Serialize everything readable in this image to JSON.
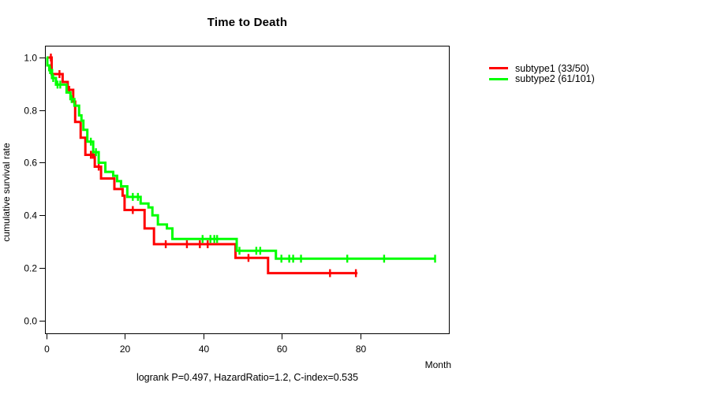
{
  "title": "Time to Death",
  "axes": {
    "x_label": "Month",
    "y_label": "cumulative survival rate",
    "x_ticks": [
      0,
      20,
      40,
      60,
      80
    ],
    "y_ticks": [
      "0.0",
      "0.2",
      "0.4",
      "0.6",
      "0.8",
      "1.0"
    ]
  },
  "annotation": "logrank P=0.497, HazardRatio=1.2, C-index=0.535",
  "legend": [
    {
      "label": "subtype1 (33/50)",
      "color": "#ff0000"
    },
    {
      "label": "subtype2 (61/101)",
      "color": "#00ff00"
    }
  ],
  "chart_data": {
    "type": "line",
    "subtype": "kaplan-meier-step-curves",
    "title": "Time to Death",
    "xlabel": "Month",
    "ylabel": "cumulative survival rate",
    "xlim": [
      0,
      102.6
    ],
    "ylim": [
      0.0,
      1.0
    ],
    "grid": false,
    "legend_position": "right-outside",
    "stats": {
      "logrank_p": 0.497,
      "hazard_ratio": 1.2,
      "c_index": 0.535
    },
    "series": [
      {
        "id": "subtype1",
        "name": "subtype1 (33/50)",
        "color": "#ff0000",
        "n": 50,
        "events": 33,
        "end": 79.3,
        "steps": [
          [
            0,
            1.0
          ],
          [
            1.3,
            0.937
          ],
          [
            4.1,
            0.907
          ],
          [
            5.4,
            0.877
          ],
          [
            6.8,
            0.832
          ],
          [
            7.3,
            0.755
          ],
          [
            8.7,
            0.695
          ],
          [
            9.9,
            0.63
          ],
          [
            12.3,
            0.585
          ],
          [
            13.9,
            0.54
          ],
          [
            17.3,
            0.5
          ],
          [
            19.4,
            0.475
          ],
          [
            19.9,
            0.42
          ],
          [
            25.0,
            0.35
          ],
          [
            27.4,
            0.29
          ],
          [
            48.2,
            0.238
          ],
          [
            56.5,
            0.18
          ]
        ],
        "censors": [
          [
            1.1,
            1.0
          ],
          [
            3.3,
            0.937
          ],
          [
            5.8,
            0.877
          ],
          [
            11.3,
            0.63
          ],
          [
            11.8,
            0.63
          ],
          [
            13.3,
            0.585
          ],
          [
            22.0,
            0.42
          ],
          [
            30.4,
            0.29
          ],
          [
            35.8,
            0.29
          ],
          [
            39.1,
            0.29
          ],
          [
            41.1,
            0.29
          ],
          [
            51.5,
            0.238
          ],
          [
            72.3,
            0.18
          ],
          [
            78.9,
            0.18
          ]
        ]
      },
      {
        "id": "subtype2",
        "name": "subtype2 (61/101)",
        "color": "#00ff00",
        "n": 101,
        "events": 61,
        "end": 99.1,
        "steps": [
          [
            0,
            1.0
          ],
          [
            0.2,
            0.97
          ],
          [
            0.7,
            0.952
          ],
          [
            1.4,
            0.922
          ],
          [
            2.4,
            0.897
          ],
          [
            5.1,
            0.867
          ],
          [
            6.1,
            0.842
          ],
          [
            7.1,
            0.817
          ],
          [
            8.3,
            0.78
          ],
          [
            8.9,
            0.76
          ],
          [
            9.4,
            0.725
          ],
          [
            10.4,
            0.68
          ],
          [
            11.9,
            0.64
          ],
          [
            13.3,
            0.6
          ],
          [
            15.0,
            0.565
          ],
          [
            17.0,
            0.55
          ],
          [
            18.0,
            0.53
          ],
          [
            19.0,
            0.51
          ],
          [
            20.6,
            0.47
          ],
          [
            24.0,
            0.445
          ],
          [
            26.0,
            0.43
          ],
          [
            27.0,
            0.4
          ],
          [
            28.4,
            0.365
          ],
          [
            30.7,
            0.35
          ],
          [
            32.1,
            0.31
          ],
          [
            48.5,
            0.265
          ],
          [
            58.5,
            0.235
          ]
        ],
        "censors": [
          [
            0.9,
            0.952
          ],
          [
            1.7,
            0.922
          ],
          [
            2.8,
            0.897
          ],
          [
            3.5,
            0.897
          ],
          [
            6.4,
            0.842
          ],
          [
            11.3,
            0.68
          ],
          [
            12.6,
            0.64
          ],
          [
            22.0,
            0.47
          ],
          [
            23.3,
            0.47
          ],
          [
            39.8,
            0.31
          ],
          [
            41.8,
            0.31
          ],
          [
            42.8,
            0.31
          ],
          [
            43.5,
            0.31
          ],
          [
            49.2,
            0.265
          ],
          [
            53.5,
            0.265
          ],
          [
            54.5,
            0.265
          ],
          [
            59.9,
            0.235
          ],
          [
            61.9,
            0.235
          ],
          [
            62.9,
            0.235
          ],
          [
            64.9,
            0.235
          ],
          [
            76.7,
            0.235
          ],
          [
            86.1,
            0.235
          ],
          [
            99.1,
            0.235
          ]
        ]
      }
    ]
  }
}
